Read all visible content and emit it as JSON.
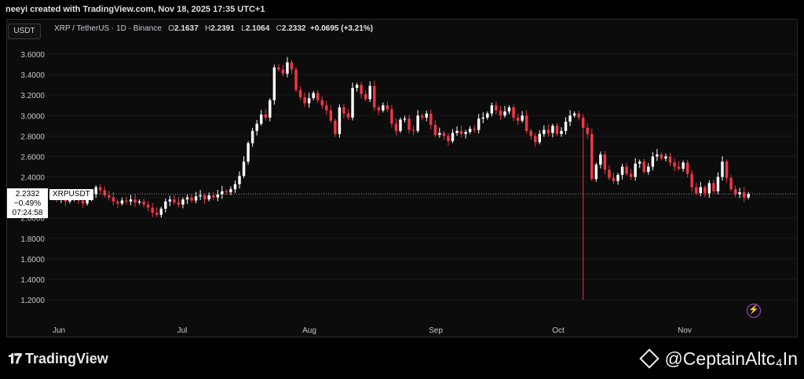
{
  "header": {
    "text": "neeyi created with TradingView.com, Nov 18, 2025 17:35 UTC+1"
  },
  "toolbar": {
    "unit_label": "USDT"
  },
  "legend": {
    "symbol": "XRP / TetherUS · 1D · Binance",
    "o_label": "O",
    "o_value": "2.1637",
    "h_label": "H",
    "h_value": "2.2391",
    "l_label": "L",
    "l_value": "2.1064",
    "c_label": "C",
    "c_value": "2.2332",
    "change": "+0.0695 (+3.21%)"
  },
  "price_box": {
    "price": "2.2332",
    "change_pct": "−0.49%",
    "countdown": "07:24:58",
    "ticker": "XRPUSDT"
  },
  "branding": {
    "logo_text": "TradingView",
    "watermark": "@CeptainAltc₄In"
  },
  "colors": {
    "up": "#ffffff",
    "down": "#f23645",
    "background": "#0c0c0c",
    "grid": "#1a1a1a",
    "accent": "#b04ad8"
  },
  "icons": {
    "alert": "lightning-icon",
    "logo": "tradingview-logo-icon",
    "watermark": "binance-diamond-icon"
  },
  "chart_data": {
    "type": "candlestick",
    "title": "XRP / TetherUS · 1D · Binance",
    "ylim": [
      1.1,
      3.7
    ],
    "y_ticks": [
      "3.6000",
      "3.4000",
      "3.2000",
      "3.0000",
      "2.8000",
      "2.6000",
      "2.4000",
      "2.2000",
      "2.0000",
      "1.8000",
      "1.6000",
      "1.4000",
      "1.2000"
    ],
    "x_ticks": [
      "Jun",
      "Jul",
      "Aug",
      "Sep",
      "Oct",
      "Nov"
    ],
    "last_price": 2.2332,
    "series_close": [
      2.2,
      2.18,
      2.21,
      2.16,
      2.19,
      2.2,
      2.17,
      2.14,
      2.19,
      2.23,
      2.3,
      2.27,
      2.22,
      2.2,
      2.16,
      2.14,
      2.17,
      2.16,
      2.18,
      2.15,
      2.16,
      2.13,
      2.1,
      2.05,
      2.03,
      2.09,
      2.16,
      2.18,
      2.15,
      2.13,
      2.18,
      2.2,
      2.17,
      2.21,
      2.22,
      2.18,
      2.22,
      2.2,
      2.23,
      2.26,
      2.25,
      2.28,
      2.33,
      2.41,
      2.55,
      2.73,
      2.85,
      2.92,
      3.01,
      2.98,
      3.15,
      3.47,
      3.45,
      3.41,
      3.52,
      3.45,
      3.25,
      3.18,
      3.12,
      3.17,
      3.22,
      3.15,
      3.1,
      3.05,
      2.95,
      2.82,
      3.08,
      3.02,
      2.98,
      3.27,
      3.3,
      3.21,
      3.16,
      3.29,
      3.08,
      3.05,
      3.1,
      3.06,
      2.92,
      2.85,
      2.96,
      2.97,
      2.86,
      2.85,
      3.0,
      2.98,
      3.02,
      2.91,
      2.81,
      2.83,
      2.8,
      2.75,
      2.83,
      2.85,
      2.82,
      2.84,
      2.87,
      2.86,
      2.97,
      2.98,
      3.02,
      3.1,
      3.05,
      3.0,
      3.04,
      3.08,
      2.98,
      2.95,
      3.0,
      2.85,
      2.8,
      2.74,
      2.82,
      2.86,
      2.83,
      2.9,
      2.82,
      2.85,
      2.94,
      3.0,
      3.02,
      2.98,
      2.88,
      2.82,
      2.38,
      2.52,
      2.62,
      2.47,
      2.39,
      2.36,
      2.42,
      2.5,
      2.43,
      2.4,
      2.53,
      2.55,
      2.45,
      2.5,
      2.6,
      2.62,
      2.58,
      2.6,
      2.54,
      2.5,
      2.48,
      2.54,
      2.43,
      2.3,
      2.24,
      2.3,
      2.24,
      2.34,
      2.26,
      2.4,
      2.55,
      2.39,
      2.28,
      2.23,
      2.25,
      2.2,
      2.2332
    ]
  }
}
